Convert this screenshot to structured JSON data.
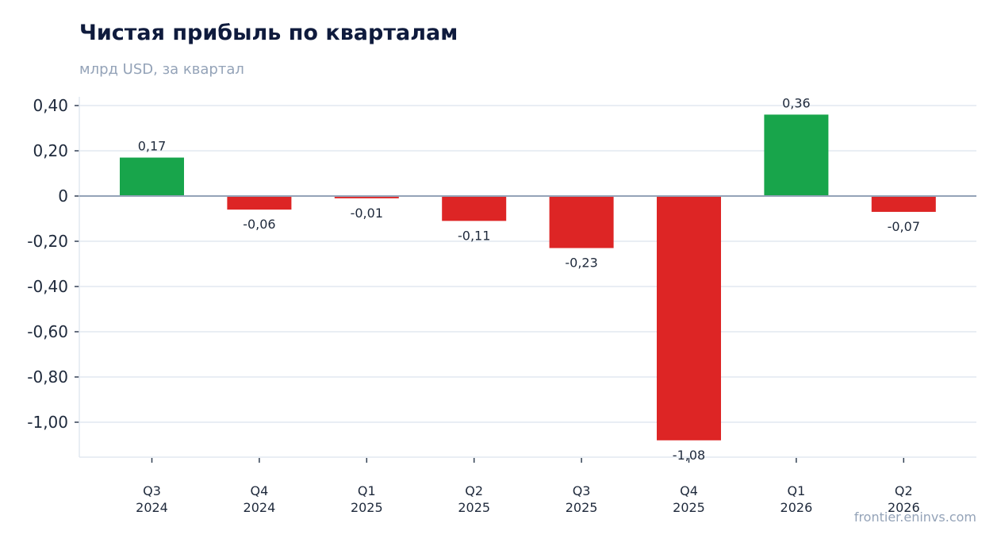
{
  "header": {
    "title": "Чистая прибыль по кварталам",
    "subtitle": "млрд USD, за квартал"
  },
  "footer": {
    "source": "frontier.eninvs.com"
  },
  "colors": {
    "positive": "#18a54b",
    "negative": "#dd2525",
    "grid": "#e2e8f0",
    "zero_line": "#94a3b8"
  },
  "chart_data": {
    "type": "bar",
    "title": "Чистая прибыль по кварталам",
    "subtitle": "млрд USD, за квартал",
    "xlabel": "",
    "ylabel": "",
    "categories": [
      [
        "Q3",
        "2024"
      ],
      [
        "Q4",
        "2024"
      ],
      [
        "Q1",
        "2025"
      ],
      [
        "Q2",
        "2025"
      ],
      [
        "Q3",
        "2025"
      ],
      [
        "Q4",
        "2025"
      ],
      [
        "Q1",
        "2026"
      ],
      [
        "Q2",
        "2026"
      ]
    ],
    "values": [
      0.17,
      -0.06,
      -0.01,
      -0.11,
      -0.23,
      -1.08,
      0.36,
      -0.07
    ],
    "data_labels": [
      "0,17",
      "-0,06",
      "-0,01",
      "-0,11",
      "-0,23",
      "-1,08",
      "0,36",
      "-0,07"
    ],
    "yticks": [
      0.4,
      0.2,
      0,
      -0.2,
      -0.4,
      -0.6,
      -0.8,
      -1.0
    ],
    "ytick_labels": [
      "0,40",
      "0,20",
      "0",
      "-0,20",
      "-0,40",
      "-0,60",
      "-0,80",
      "-1,00"
    ],
    "ylim": [
      -1.15,
      0.43
    ],
    "grid": "horizontal",
    "legend": "none"
  }
}
